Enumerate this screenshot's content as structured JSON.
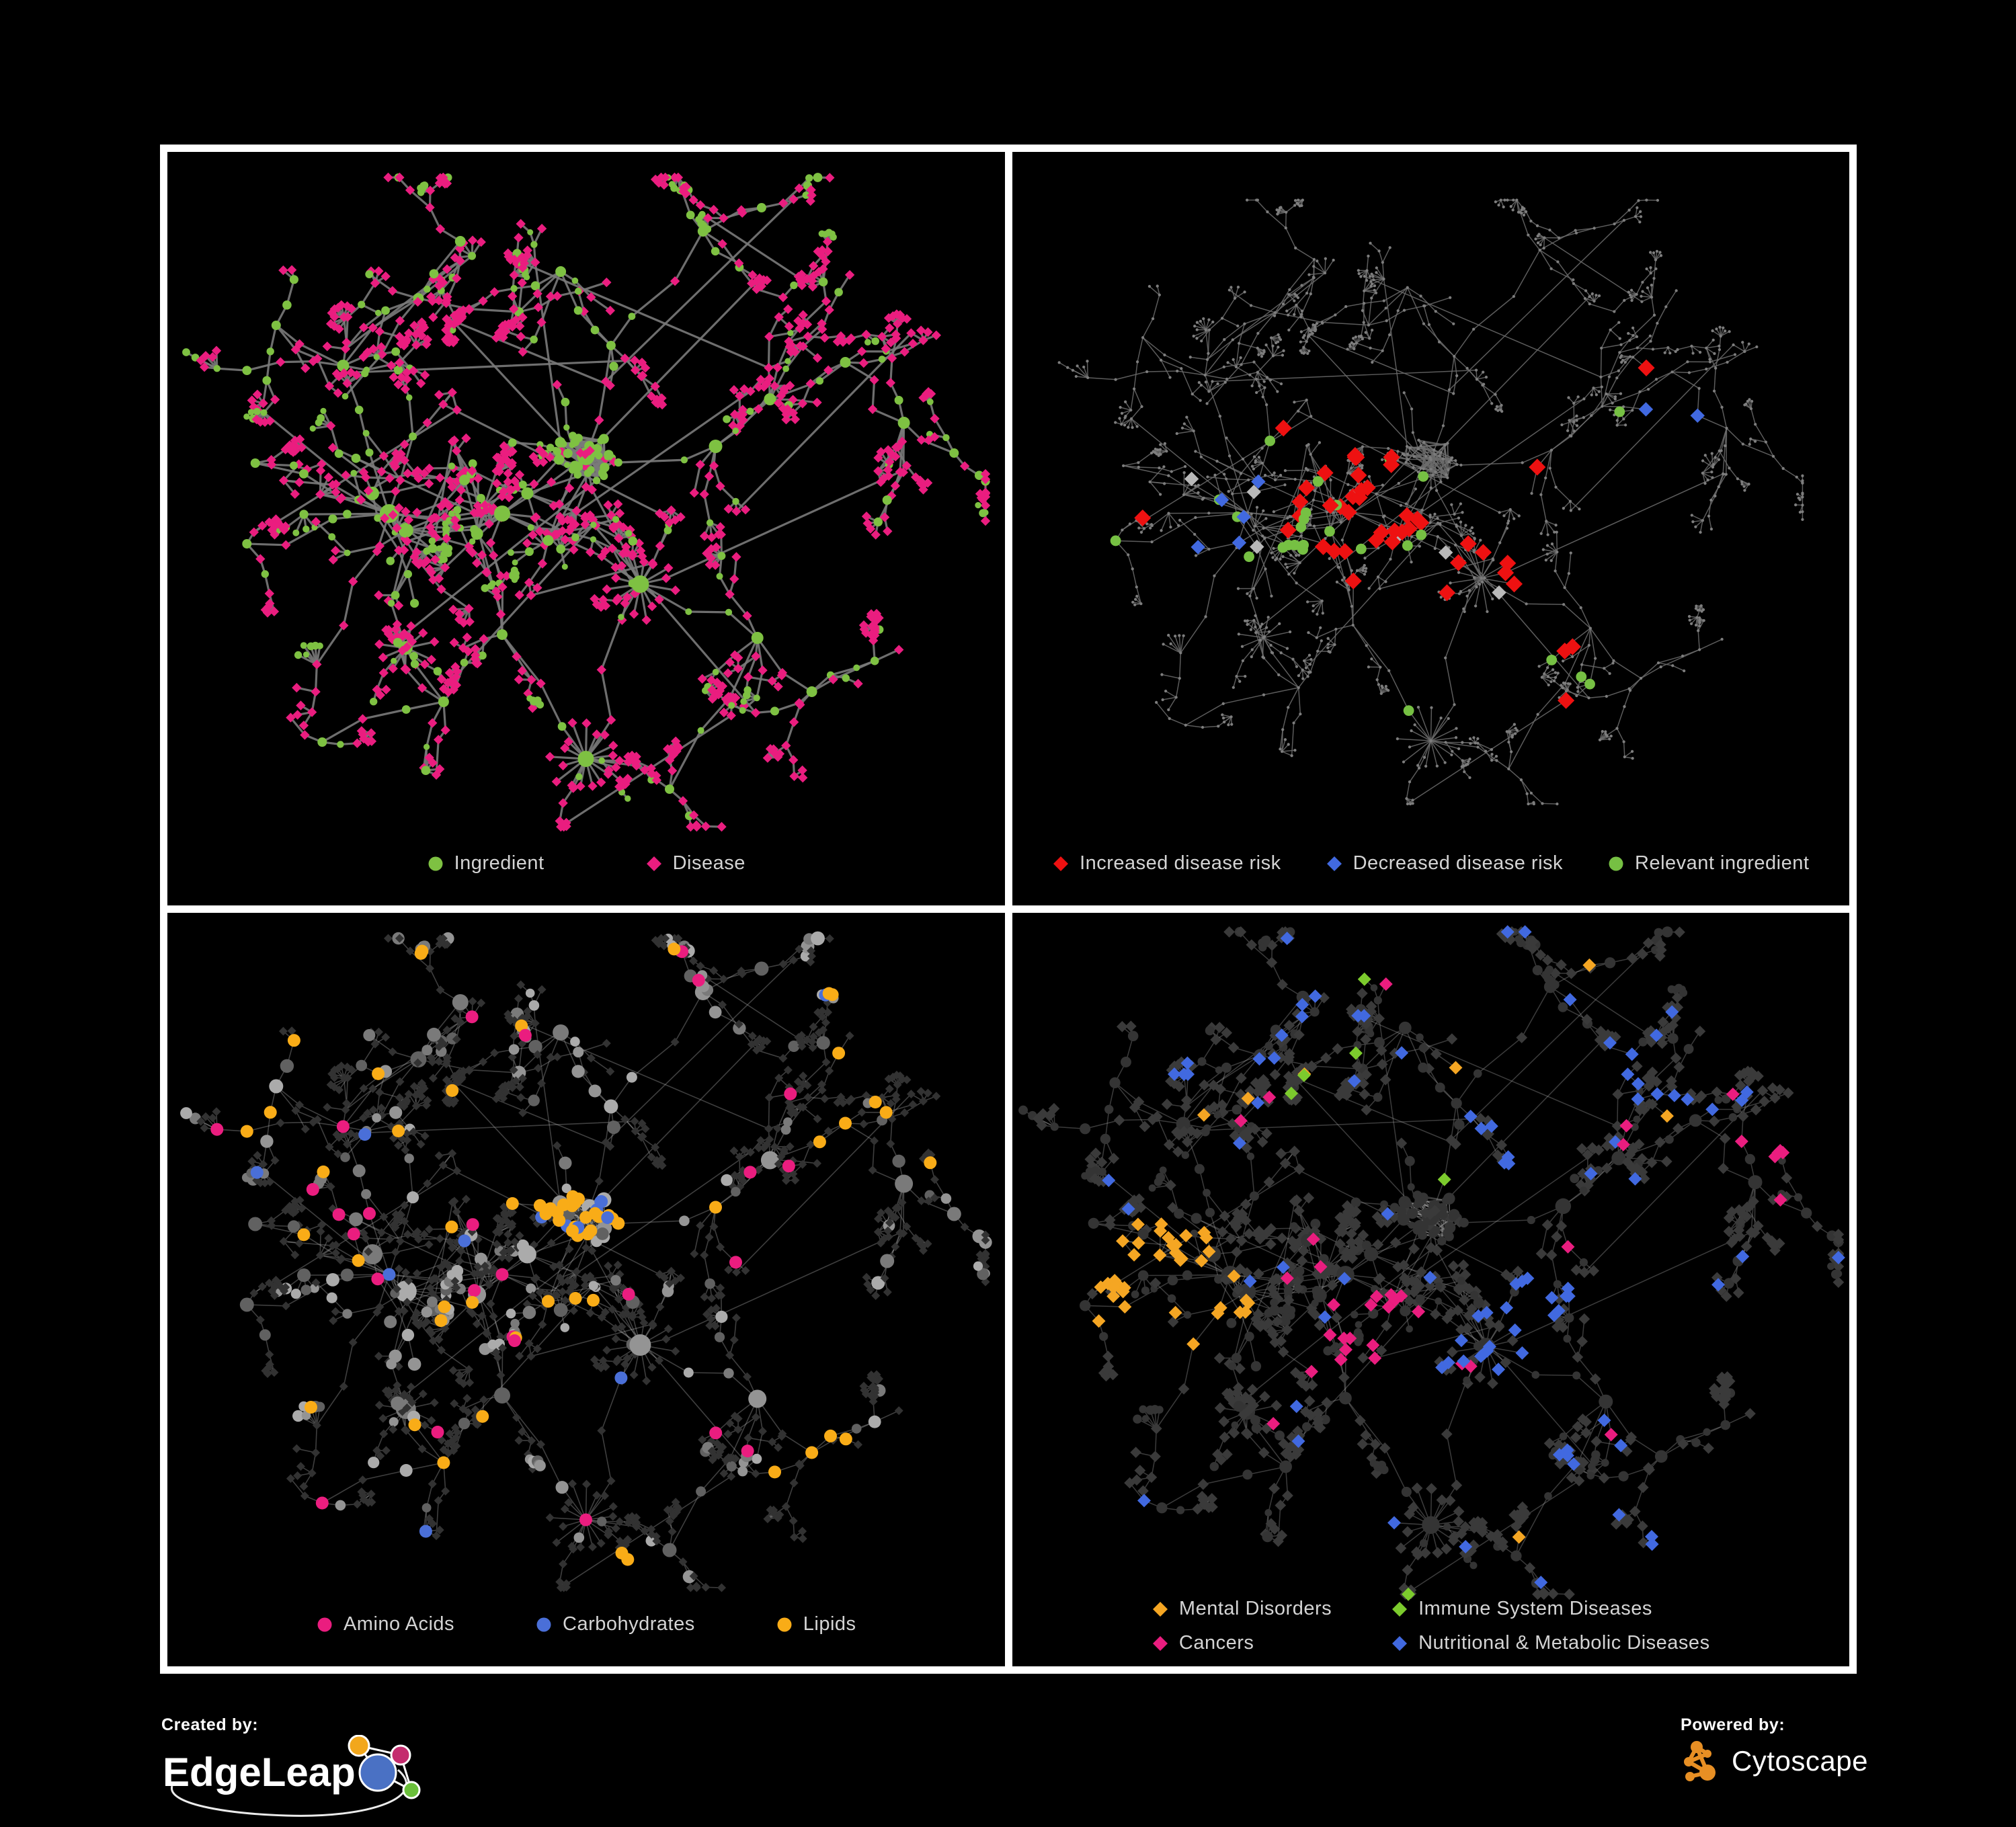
{
  "poster": {
    "background": "#000000",
    "frame_color": "#ffffff"
  },
  "panels": [
    {
      "name": "ingredient-disease-network",
      "legend": [
        {
          "label": "Ingredient",
          "shape": "circle",
          "color": "#7ec142"
        },
        {
          "label": "Disease",
          "shape": "diamond",
          "color": "#ea1d7f"
        }
      ],
      "legend_gap": 150,
      "style": {
        "edge_color": "#7a7a7a",
        "edge_width": 3.2,
        "edge_opacity": 0.9,
        "scale": 1
      }
    },
    {
      "name": "disease-risk-network",
      "legend": [
        {
          "label": "Increased disease risk",
          "shape": "diamond",
          "color": "#ee1111"
        },
        {
          "label": "Decreased disease risk",
          "shape": "diamond",
          "color": "#4169e0"
        },
        {
          "label": "Relevant ingredient",
          "shape": "circle",
          "color": "#76c043"
        }
      ],
      "legend_gap": 66,
      "style": {
        "edge_color": "#6c6c6c",
        "edge_width": 1.6,
        "edge_opacity": 0.85,
        "default_node_color": "#7d7d7d",
        "neutral_highlight_color": "#b9b9b9",
        "scale": 0.93
      }
    },
    {
      "name": "nutrient-class-network",
      "legend": [
        {
          "label": "Amino Acids",
          "shape": "circle",
          "color": "#ea1d7f"
        },
        {
          "label": "Carbohydrates",
          "shape": "circle",
          "color": "#4a6fd8"
        },
        {
          "label": "Lipids",
          "shape": "circle",
          "color": "#f9ac17"
        }
      ],
      "legend_gap": 120,
      "style": {
        "edge_color": "#b4b4b4",
        "edge_width": 1.6,
        "edge_opacity": 0.35,
        "disease_node_color": "#323232",
        "ingredient_gray_tones": [
          "#ababab",
          "#949494",
          "#7a7a7a",
          "#616161"
        ],
        "scale": 1
      }
    },
    {
      "name": "disease-class-network",
      "legend": [
        {
          "label": "Mental Disorders",
          "shape": "diamond",
          "color": "#f5a623"
        },
        {
          "label": "Immune System Diseases",
          "shape": "diamond",
          "color": "#7ccb2d"
        },
        {
          "label": "Cancers",
          "shape": "diamond",
          "color": "#ea1d7f"
        },
        {
          "label": "Nutritional & Metabolic Diseases",
          "shape": "diamond",
          "color": "#4169e0"
        }
      ],
      "legend_layout": "two-column",
      "style": {
        "edge_color": "#a8a8a8",
        "edge_width": 1.5,
        "edge_opacity": 0.35,
        "disease_node_color": "#3a3a3a",
        "ingredient_node_color": "#343434",
        "scale": 1.02
      }
    }
  ],
  "footer": {
    "created_by_label": "Created by:",
    "created_by_brand": "EdgeLeap",
    "powered_by_label": "Powered by:",
    "powered_by_brand": "Cytoscape",
    "cytoscape_orange": "#e78f24",
    "edgeleap_colors": {
      "blue": "#4a71c4",
      "orange": "#f2a71c",
      "magenta": "#c42c6e",
      "green": "#6abf3a"
    }
  },
  "network": {
    "seed": 20240613,
    "node_kinds": {
      "ingredient": "circle",
      "disease": "diamond"
    }
  }
}
